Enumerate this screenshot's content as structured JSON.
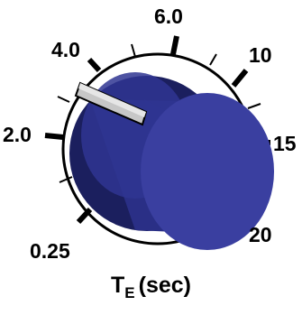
{
  "knob": {
    "body_color": "#2a2f86",
    "front_color": "#3a3fa0",
    "dark_color": "#1b1f5e",
    "pointer_color": "#c7c7c7",
    "scale_labels": [
      "4.0",
      "6.0",
      "10",
      "2.0",
      "15",
      "0.25",
      "20"
    ],
    "caption_symbol": "T",
    "caption_subscript": "E",
    "caption_unit": "(sec)"
  }
}
